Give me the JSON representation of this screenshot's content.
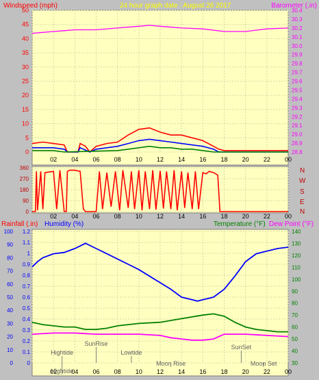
{
  "header": {
    "windspeed_label": "Windspeed (mph)",
    "title": "24 hour graph date : August 26 2017",
    "barometer_label": "Barometer (.in)"
  },
  "time_ticks": [
    "02",
    "04",
    "06",
    "08",
    "10",
    "12",
    "14",
    "16",
    "18",
    "20",
    "22",
    "00"
  ],
  "colors": {
    "background": "#c0c0c0",
    "plot": "#ffffc0",
    "grid": "#d8d8a8",
    "red": "#ff0000",
    "blue": "#0000ff",
    "green": "#008000",
    "magenta": "#ff00ff",
    "dark_red": "#c00000"
  },
  "chart_data": [
    {
      "id": "wind",
      "type": "line",
      "x_unit": "hour of day",
      "xlim": [
        0,
        24
      ],
      "y_left": {
        "label": "Windspeed (mph)",
        "ticks": [
          0,
          5,
          10,
          15,
          20,
          25,
          30,
          35,
          40,
          45,
          50
        ],
        "lim": [
          0,
          50
        ]
      },
      "y_right": {
        "label": "Barometer (.in)",
        "ticks": [
          28.8,
          28.9,
          29,
          29.1,
          29.2,
          29.3,
          29.4,
          29.5,
          29.6,
          29.7,
          29.8,
          29.9,
          30,
          30.1,
          30.2,
          30.3,
          30.4
        ],
        "lim": [
          28.8,
          30.4
        ]
      },
      "series": [
        {
          "name": "Barometer",
          "axis": "right",
          "color": "#ff00ff",
          "points": [
            [
              0,
              30.14
            ],
            [
              1,
              30.15
            ],
            [
              2,
              30.16
            ],
            [
              3,
              30.17
            ],
            [
              4,
              30.18
            ],
            [
              6,
              30.18
            ],
            [
              8,
              30.2
            ],
            [
              10,
              30.22
            ],
            [
              11,
              30.23
            ],
            [
              12,
              30.22
            ],
            [
              14,
              30.2
            ],
            [
              16,
              30.19
            ],
            [
              18,
              30.16
            ],
            [
              20,
              30.16
            ],
            [
              22,
              30.19
            ],
            [
              24,
              30.2
            ]
          ]
        },
        {
          "kind": "gust",
          "axis": "left",
          "color": "#ff0000",
          "points": [
            [
              0,
              3
            ],
            [
              1,
              3.5
            ],
            [
              2,
              3
            ],
            [
              3,
              2.5
            ],
            [
              3.3,
              0
            ],
            [
              4.3,
              0
            ],
            [
              4.5,
              3
            ],
            [
              5,
              2
            ],
            [
              5.4,
              0
            ],
            [
              6,
              2
            ],
            [
              7,
              3
            ],
            [
              8,
              3.5
            ],
            [
              9,
              6
            ],
            [
              10,
              8
            ],
            [
              11,
              8.5
            ],
            [
              12,
              7
            ],
            [
              13,
              6
            ],
            [
              14,
              6
            ],
            [
              15,
              5
            ],
            [
              16,
              4
            ],
            [
              17,
              2
            ],
            [
              17.5,
              1
            ],
            [
              18,
              0.5
            ],
            [
              24,
              0.5
            ]
          ]
        },
        {
          "kind": "average",
          "axis": "left",
          "color": "#0000ff",
          "points": [
            [
              0,
              1.5
            ],
            [
              2,
              1.5
            ],
            [
              3,
              1
            ],
            [
              3.3,
              0
            ],
            [
              4.3,
              0
            ],
            [
              4.5,
              1.5
            ],
            [
              5.4,
              0
            ],
            [
              6,
              1
            ],
            [
              8,
              2
            ],
            [
              9,
              3
            ],
            [
              10,
              4
            ],
            [
              11,
              4.5
            ],
            [
              12,
              4
            ],
            [
              13,
              3.5
            ],
            [
              14,
              3
            ],
            [
              15,
              2.5
            ],
            [
              16,
              2
            ],
            [
              17,
              1
            ],
            [
              17.5,
              0
            ],
            [
              24,
              0
            ]
          ]
        },
        {
          "kind": "low",
          "axis": "left",
          "color": "#008000",
          "points": [
            [
              0,
              0.5
            ],
            [
              2,
              0.5
            ],
            [
              3,
              0
            ],
            [
              8,
              0.5
            ],
            [
              9,
              1
            ],
            [
              10,
              1.5
            ],
            [
              11,
              2
            ],
            [
              12,
              1.5
            ],
            [
              13,
              1.5
            ],
            [
              14,
              1
            ],
            [
              15,
              1
            ],
            [
              16,
              0.5
            ],
            [
              17,
              0
            ],
            [
              24,
              0
            ]
          ]
        }
      ]
    },
    {
      "id": "direction",
      "type": "line",
      "xlim": [
        0,
        24
      ],
      "y_left": {
        "ticks": [
          0,
          90,
          180,
          270,
          360
        ],
        "lim": [
          0,
          360
        ]
      },
      "y_right": {
        "ticks": [
          "N",
          "W",
          "S",
          "E",
          "N"
        ]
      },
      "series": [
        {
          "kind": "direction",
          "color": "#ff0000",
          "points": [
            [
              0,
              0
            ],
            [
              0.3,
              0
            ],
            [
              0.4,
              330
            ],
            [
              0.5,
              10
            ],
            [
              0.8,
              330
            ],
            [
              1,
              20
            ],
            [
              1.2,
              320
            ],
            [
              2,
              330
            ],
            [
              2.3,
              20
            ],
            [
              2.6,
              340
            ],
            [
              3,
              0
            ],
            [
              3.2,
              0
            ],
            [
              3.3,
              330
            ],
            [
              3.5,
              340
            ],
            [
              4,
              340
            ],
            [
              4.5,
              330
            ],
            [
              4.8,
              20
            ],
            [
              5,
              0
            ],
            [
              6,
              0
            ],
            [
              6.3,
              330
            ],
            [
              6.6,
              20
            ],
            [
              7,
              320
            ],
            [
              7.4,
              40
            ],
            [
              7.8,
              330
            ],
            [
              8.2,
              10
            ],
            [
              8.5,
              340
            ],
            [
              9,
              30
            ],
            [
              9.3,
              330
            ],
            [
              9.6,
              20
            ],
            [
              10,
              340
            ],
            [
              10.3,
              10
            ],
            [
              10.6,
              330
            ],
            [
              11,
              20
            ],
            [
              11.3,
              340
            ],
            [
              11.6,
              15
            ],
            [
              12,
              335
            ],
            [
              12.3,
              25
            ],
            [
              12.6,
              330
            ],
            [
              13,
              20
            ],
            [
              13.3,
              340
            ],
            [
              13.6,
              10
            ],
            [
              14,
              330
            ],
            [
              14.3,
              30
            ],
            [
              14.6,
              320
            ],
            [
              15,
              20
            ],
            [
              15.3,
              330
            ],
            [
              15.6,
              20
            ],
            [
              16,
              320
            ],
            [
              16.3,
              310
            ],
            [
              16.6,
              330
            ],
            [
              17,
              320
            ],
            [
              17.4,
              300
            ],
            [
              17.6,
              0
            ],
            [
              24,
              0
            ]
          ]
        }
      ]
    },
    {
      "id": "rain_humidity_temperature",
      "type": "line",
      "xlim": [
        0,
        24
      ],
      "y_left_outer": {
        "label": "Rainfall (.in)",
        "ticks": [
          0,
          10,
          20,
          30,
          40,
          50,
          60,
          70,
          80,
          90,
          100
        ]
      },
      "y_left_inner": {
        "label": "Humidity (%)",
        "ticks": [
          0,
          0.1,
          0.2,
          0.3,
          0.4,
          0.5,
          0.6,
          0.7,
          0.8,
          0.9,
          1,
          1.1,
          1.2
        ],
        "lim": [
          0,
          1.2
        ]
      },
      "y_right": {
        "label": "Temperature (°F)",
        "label2": "Dew Point (°F)",
        "ticks": [
          30,
          40,
          50,
          60,
          70,
          80,
          90,
          100,
          110,
          120,
          130,
          140
        ],
        "lim": [
          30,
          140
        ]
      },
      "series": [
        {
          "name": "Humidity",
          "axis": "humidity_pct",
          "color": "#0000ff",
          "points": [
            [
              0,
              73
            ],
            [
              0.5,
              77
            ],
            [
              1,
              80
            ],
            [
              2,
              83
            ],
            [
              3,
              84
            ],
            [
              4,
              87
            ],
            [
              5,
              91
            ],
            [
              6,
              87
            ],
            [
              7,
              83
            ],
            [
              8,
              79
            ],
            [
              9,
              75
            ],
            [
              10,
              71
            ],
            [
              11,
              66
            ],
            [
              12,
              61
            ],
            [
              13,
              56
            ],
            [
              14,
              50
            ],
            [
              15,
              48
            ],
            [
              15.5,
              47
            ],
            [
              16,
              48
            ],
            [
              17,
              50
            ],
            [
              18,
              56
            ],
            [
              19,
              66
            ],
            [
              20,
              77
            ],
            [
              21,
              83
            ],
            [
              22,
              85
            ],
            [
              23,
              87
            ],
            [
              24,
              88
            ]
          ]
        },
        {
          "name": "Temperature",
          "axis": "right",
          "color": "#008000",
          "points": [
            [
              0,
              64
            ],
            [
              1,
              62
            ],
            [
              2,
              61
            ],
            [
              3,
              60
            ],
            [
              4,
              60
            ],
            [
              5,
              58
            ],
            [
              6,
              58
            ],
            [
              7,
              59
            ],
            [
              8,
              61
            ],
            [
              9,
              62
            ],
            [
              10,
              63
            ],
            [
              12,
              64
            ],
            [
              14,
              67
            ],
            [
              16,
              70
            ],
            [
              17,
              71
            ],
            [
              18,
              69
            ],
            [
              19,
              64
            ],
            [
              20,
              60
            ],
            [
              21,
              58
            ],
            [
              22,
              57
            ],
            [
              23,
              56
            ],
            [
              24,
              56
            ]
          ]
        },
        {
          "name": "Dew Point",
          "axis": "right",
          "color": "#ff00ff",
          "points": [
            [
              0,
              54
            ],
            [
              2,
              55
            ],
            [
              4,
              55
            ],
            [
              6,
              54
            ],
            [
              8,
              54
            ],
            [
              10,
              54
            ],
            [
              12,
              53
            ],
            [
              13,
              51
            ],
            [
              14,
              50
            ],
            [
              15,
              49
            ],
            [
              16,
              49
            ],
            [
              17,
              50
            ],
            [
              18,
              54
            ],
            [
              19,
              54
            ],
            [
              20,
              54
            ],
            [
              22,
              53
            ],
            [
              24,
              52
            ]
          ]
        }
      ],
      "annotations": [
        {
          "text": "Hightide",
          "x": 2.8,
          "row": "upper"
        },
        {
          "text": "Hightide",
          "x": 2.8,
          "row": "bottom"
        },
        {
          "text": "SunRise",
          "x": 6.0,
          "row": "top"
        },
        {
          "text": "Lowtide",
          "x": 9.3,
          "row": "upper"
        },
        {
          "text": "Moon Rise",
          "x": 13.0,
          "row": "lower"
        },
        {
          "text": "SunSet",
          "x": 19.6,
          "row": "mid"
        },
        {
          "text": "Moon Set",
          "x": 21.7,
          "row": "lower"
        }
      ]
    }
  ]
}
